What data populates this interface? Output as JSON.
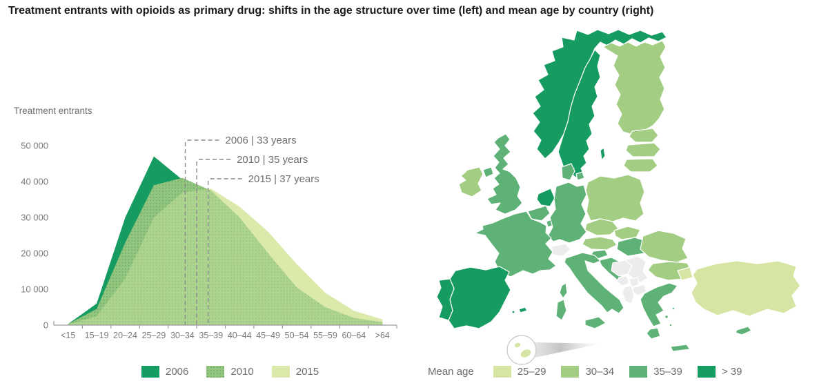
{
  "page": {
    "title": "Treatment entrants with opioids as primary drug: shifts in the age structure over time (left) and mean age by country (right)"
  },
  "chart_data": {
    "type": "area",
    "ylabel": "Treatment entrants",
    "categories": [
      "<15",
      "15–19",
      "20–24",
      "25–29",
      "30–34",
      "35–39",
      "40–44",
      "45–49",
      "50–54",
      "55–59",
      "60–64",
      ">64"
    ],
    "ylim": [
      0,
      50000
    ],
    "ytick_values": [
      0,
      10000,
      20000,
      30000,
      40000,
      50000
    ],
    "ytick_labels": [
      "0",
      "10 000",
      "20 000",
      "30 000",
      "40 000",
      "50 000"
    ],
    "grid": false,
    "legend_position": "bottom",
    "series": [
      {
        "name": "2006",
        "color": "#169c61",
        "values": [
          300,
          6000,
          30000,
          47000,
          40500,
          36000,
          26000,
          16000,
          8000,
          3500,
          1500,
          600
        ]
      },
      {
        "name": "2010",
        "color": "#93c57e",
        "texture": "dots",
        "values": [
          300,
          4500,
          23000,
          39000,
          41000,
          37500,
          30000,
          20000,
          10500,
          5000,
          2000,
          800
        ]
      },
      {
        "name": "2015",
        "color": "#dbe9ab",
        "values": [
          200,
          2500,
          13000,
          30000,
          37000,
          38000,
          33000,
          26000,
          17000,
          9000,
          4000,
          1600
        ]
      }
    ],
    "annotations": [
      {
        "label": "2006 | 33 years",
        "year": "2006",
        "mean_age": 33
      },
      {
        "label": "2010 | 35 years",
        "year": "2010",
        "mean_age": 35
      },
      {
        "label": "2015 | 37 years",
        "year": "2015",
        "mean_age": 37
      }
    ]
  },
  "map": {
    "legend_title": "Mean age",
    "classes": [
      {
        "id": "c1",
        "label": "25–29",
        "color": "#d6e5a3"
      },
      {
        "id": "c2",
        "label": "30–34",
        "color": "#a2cd82"
      },
      {
        "id": "c3",
        "label": "35–39",
        "color": "#5fb277"
      },
      {
        "id": "c4",
        "label": "> 39",
        "color": "#169c61"
      }
    ],
    "no_data_color": "#ececec",
    "countries": {
      "norway": "c4",
      "sweden": "c4",
      "gotland": "c4",
      "netherlands": "c4",
      "spain": "c4",
      "portugal": "c4",
      "balearic-islands": "c4",
      "balearic-islands-2": "c4",
      "united-kingdom": "c3",
      "northern-ireland": "c3",
      "france": "c3",
      "corsica": "c3",
      "belgium": "c3",
      "luxembourg": "c3",
      "germany": "c3",
      "denmark": "c3",
      "denmark-islands": "c3",
      "italy": "c3",
      "sicily": "c3",
      "sardinia": "c3",
      "slovenia": "c3",
      "croatia": "c3",
      "hungary": "c3",
      "greece": "c3",
      "peloponnese": "c3",
      "crete": "c3",
      "greek-island-1": "c3",
      "greek-island-2": "c3",
      "greek-island-3": "c3",
      "cyprus": "c3",
      "ireland": "c2",
      "finland": "c2",
      "estonia": "c2",
      "latvia": "c2",
      "lithuania": "c2",
      "poland": "c2",
      "czechia": "c2",
      "slovakia": "c2",
      "austria": "c2",
      "romania": "c2",
      "bulgaria": "c2",
      "turkey": "c1",
      "turkey-thrace": "c1",
      "malta": "c1",
      "gozo": "c1",
      "switzerland": "nd",
      "bosnia-herzegovina": "nd",
      "serbia": "nd",
      "montenegro": "nd",
      "kosovo": "nd",
      "albania": "nd",
      "north-macedonia": "nd"
    }
  }
}
